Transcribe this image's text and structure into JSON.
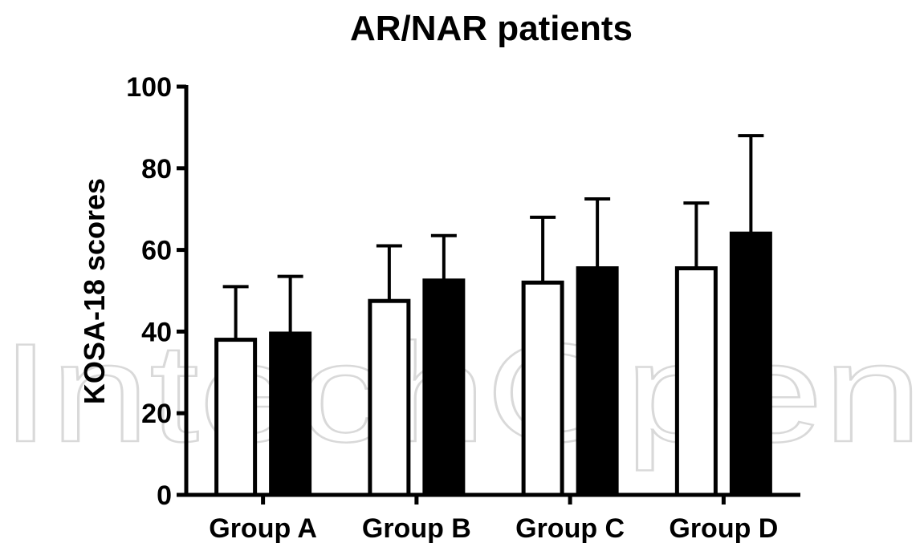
{
  "watermark": "IntechOpen",
  "chart_data": {
    "type": "bar",
    "title": "AR/NAR patients",
    "xlabel": "",
    "ylabel": "KOSA-18 scores",
    "ylim": [
      0,
      100
    ],
    "yticks": [
      "0",
      "20",
      "40",
      "60",
      "80",
      "100"
    ],
    "categories": [
      "Group A",
      "Group B",
      "Group C",
      "Group D"
    ],
    "series": [
      {
        "fill": "#ffffff",
        "values": [
          38,
          47.5,
          52,
          55.5
        ],
        "error_upper": [
          51,
          61,
          68,
          71.5
        ]
      },
      {
        "fill": "#000000",
        "values": [
          39.5,
          52.5,
          55.5,
          64
        ],
        "error_upper": [
          53.5,
          63.5,
          72.5,
          88
        ]
      }
    ],
    "error_bars": "upper",
    "grid": false,
    "legend": "none"
  }
}
